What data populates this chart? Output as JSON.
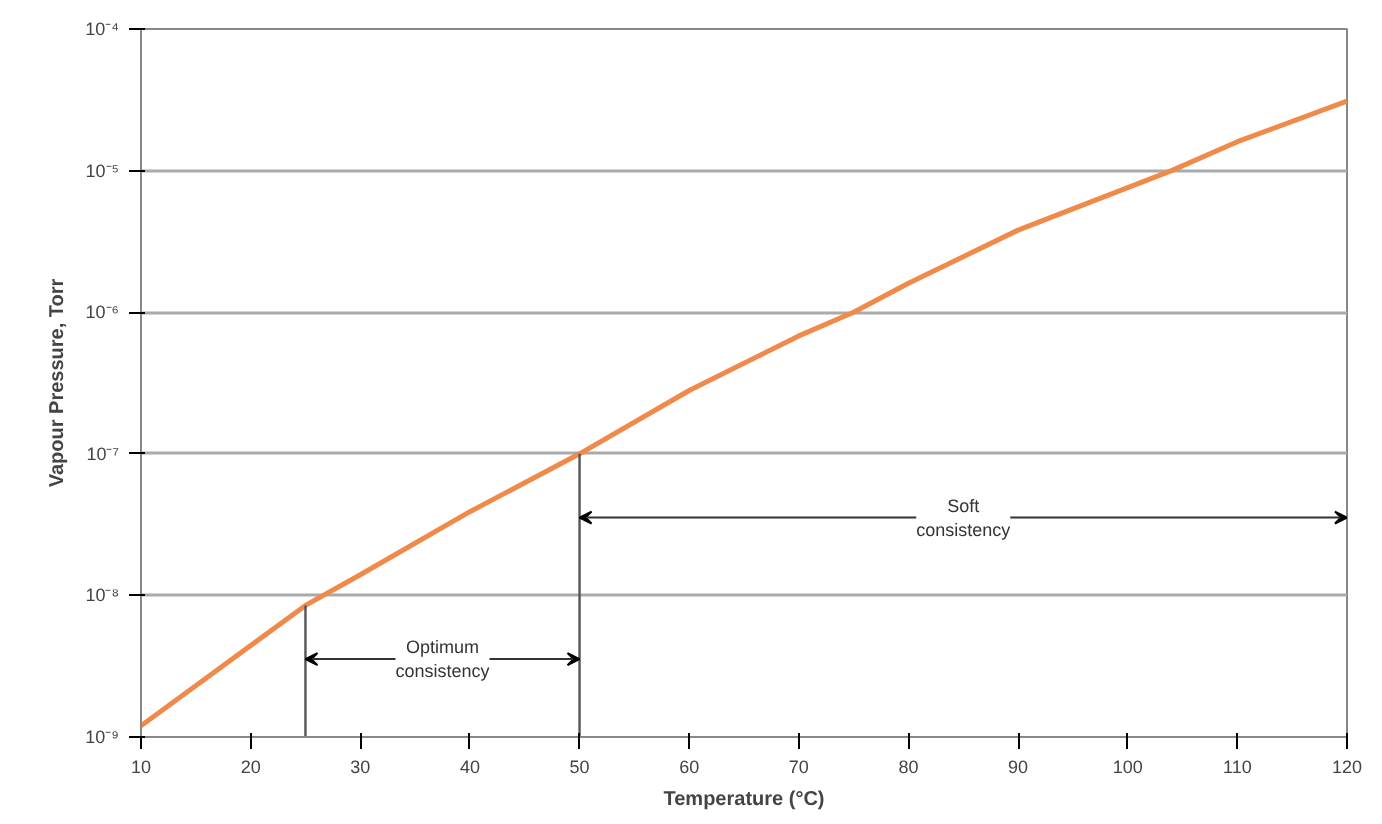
{
  "chart_data": {
    "type": "line",
    "xlabel": "Temperature (°C)",
    "ylabel": "Vapour Pressure, Torr",
    "log": "y",
    "grid": "y",
    "marker": "none",
    "line_style": "solid",
    "xlim": [
      10,
      120
    ],
    "xticks": [
      10,
      20,
      30,
      40,
      50,
      60,
      70,
      80,
      90,
      100,
      110,
      120
    ],
    "ylim": [
      1e-09,
      0.0001
    ],
    "yticks": [
      {
        "value": 1e-09,
        "label": "10⁻⁹"
      },
      {
        "value": 1e-08,
        "label": "10⁻⁸"
      },
      {
        "value": 1e-07,
        "label": "10⁻⁷"
      },
      {
        "value": 1e-06,
        "label": "10⁻⁶"
      },
      {
        "value": 1e-05,
        "label": "10⁻⁵"
      },
      {
        "value": 0.0001,
        "label": "10⁻⁴"
      }
    ],
    "series": [
      {
        "color": "#f08a4b",
        "x": [
          10,
          25,
          30,
          40,
          50,
          60,
          70,
          75,
          80,
          90,
          104,
          110,
          120
        ],
        "values": [
          1.2e-09,
          8.5e-09,
          1.4e-08,
          3.9e-08,
          1e-07,
          2.8e-07,
          6.8e-07,
          1e-06,
          1.6e-06,
          3.8e-06,
          1e-05,
          1.6e-05,
          3.1e-05
        ]
      }
    ],
    "ref_lines": [
      {
        "axis": "x",
        "value": 25,
        "color": "#555555"
      },
      {
        "axis": "x",
        "value": 50,
        "color": "#555555"
      }
    ],
    "annotations": [
      "Optimum consistency",
      "Soft consistency"
    ]
  }
}
